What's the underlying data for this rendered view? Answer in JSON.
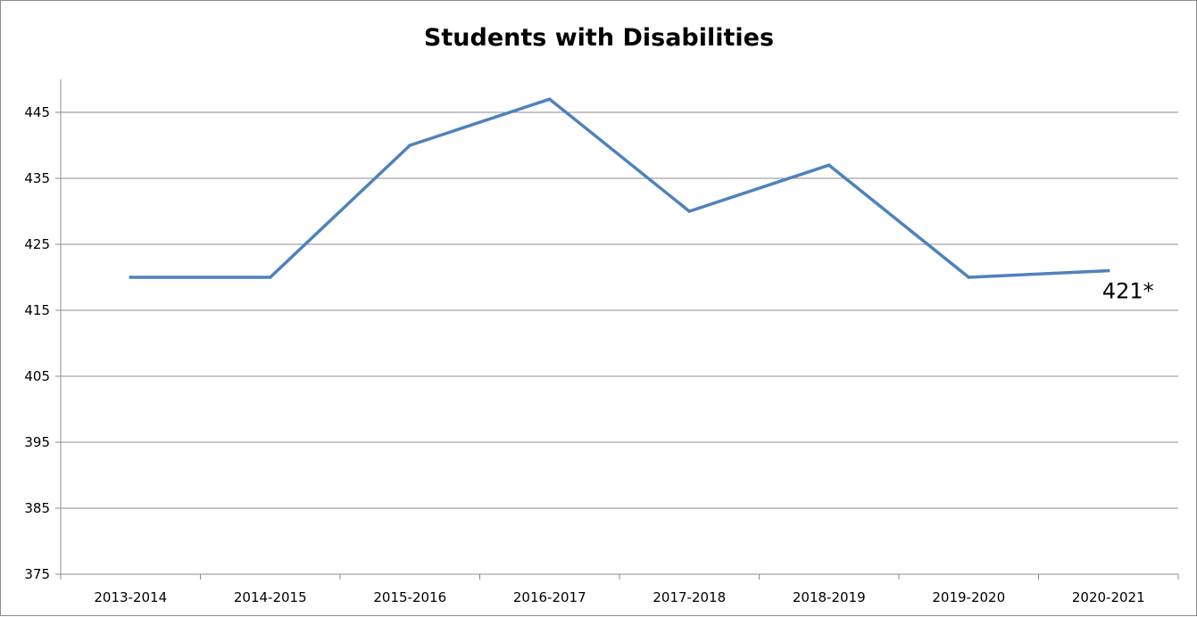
{
  "chart_data": {
    "type": "line",
    "title": "Students with Disabilities",
    "xlabel": "",
    "ylabel": "",
    "categories": [
      "2013-2014",
      "2014-2015",
      "2015-2016",
      "2016-2017",
      "2017-2018",
      "2018-2019",
      "2019-2020",
      "2020-2021"
    ],
    "series": [
      {
        "values": [
          420,
          420,
          440,
          447,
          430,
          437,
          420,
          421
        ],
        "color": "#4f81bd"
      }
    ],
    "ylim": [
      375,
      450
    ],
    "yticks": [
      "375",
      "385",
      "395",
      "405",
      "415",
      "425",
      "435",
      "445"
    ],
    "grid": true,
    "legend": "none",
    "annotations": [
      {
        "category": "2020-2021",
        "text": "421*"
      }
    ]
  }
}
